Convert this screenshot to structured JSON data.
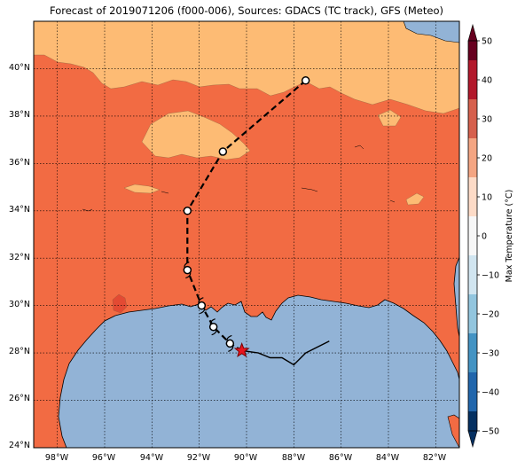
{
  "title": "Forecast of 2019071206 (f000-006), Sources: GDACS (TC track), GFS (Meteo)",
  "lat_labels": [
    "40°N",
    "38°N",
    "36°N",
    "34°N",
    "32°N",
    "30°N",
    "28°N",
    "26°N",
    "24°N"
  ],
  "lon_labels": [
    "98°W",
    "96°W",
    "94°W",
    "92°W",
    "90°W",
    "88°W",
    "86°W",
    "84°W",
    "82°W"
  ],
  "colorbar": {
    "label": "Max Temperature (°C)",
    "ticks": [
      "50",
      "40",
      "30",
      "20",
      "10",
      "0",
      "−10",
      "−20",
      "−30",
      "−40",
      "−50"
    ],
    "colors": [
      "#67001f",
      "#b2182b",
      "#d6604d",
      "#f4a582",
      "#fddbc7",
      "#f7f7f7",
      "#d1e5f0",
      "#92c5de",
      "#4393c3",
      "#2166ac",
      "#053061"
    ]
  },
  "map_colors": {
    "land_warm": "#f26b43",
    "land_mild": "#fdbb74",
    "land_hot": "#e34a33",
    "sea": "#92b3d6"
  },
  "track": {
    "forecast_points": [
      {
        "lon": -87.5,
        "lat": 39.5
      },
      {
        "lon": -91.0,
        "lat": 36.5
      },
      {
        "lon": -92.5,
        "lat": 34.0
      },
      {
        "lon": -92.5,
        "lat": 31.5
      },
      {
        "lon": -91.9,
        "lat": 30.0
      },
      {
        "lon": -91.4,
        "lat": 29.1
      },
      {
        "lon": -90.7,
        "lat": 28.4
      }
    ],
    "current_position": {
      "lon": -90.2,
      "lat": 28.1
    },
    "past_track": [
      {
        "lon": -90.2,
        "lat": 28.1
      },
      {
        "lon": -89.5,
        "lat": 28.0
      },
      {
        "lon": -89.0,
        "lat": 27.8
      },
      {
        "lon": -88.5,
        "lat": 27.8
      },
      {
        "lon": -88.0,
        "lat": 27.5
      },
      {
        "lon": -87.5,
        "lat": 28.0
      },
      {
        "lon": -86.5,
        "lat": 28.5
      }
    ]
  }
}
